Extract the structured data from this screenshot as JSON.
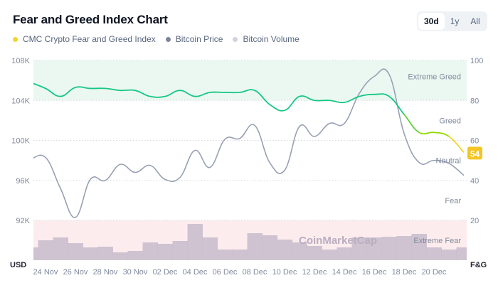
{
  "title": "Fear and Greed Index Chart",
  "range_tabs": [
    {
      "label": "30d",
      "active": true
    },
    {
      "label": "1y",
      "active": false
    },
    {
      "label": "All",
      "active": false
    }
  ],
  "legend": [
    {
      "label": "CMC Crypto Fear and Greed Index",
      "color": "#f3d42f"
    },
    {
      "label": "Bitcoin Price",
      "color": "#7d8599"
    },
    {
      "label": "Bitcoin Volume",
      "color": "#cfd3de"
    }
  ],
  "watermark": "CoinMarketCap",
  "chart_data": {
    "type": "line",
    "left_axis": {
      "unit_label": "USD",
      "ticks": [
        "108K",
        "104K",
        "100K",
        "96K",
        "92K"
      ],
      "range": [
        92,
        108
      ]
    },
    "right_axis": {
      "unit_label": "F&G",
      "ticks": [
        "100",
        "80",
        "60",
        "40",
        "20"
      ],
      "range": [
        0,
        100
      ]
    },
    "x_tick_labels": [
      "24 Nov",
      "26 Nov",
      "28 Nov",
      "30 Nov",
      "02 Dec",
      "04 Dec",
      "06 Dec",
      "08 Dec",
      "10 Dec",
      "12 Dec",
      "14 Dec",
      "16 Dec",
      "18 Dec",
      "20 Dec"
    ],
    "zones": [
      {
        "label": "Extreme Greed",
        "from": 80,
        "to": 100,
        "color": "#eaf8f1"
      },
      {
        "label": "Greed",
        "from": 60,
        "to": 80
      },
      {
        "label": "Neutral",
        "from": 40,
        "to": 60
      },
      {
        "label": "Fear",
        "from": 20,
        "to": 40
      },
      {
        "label": "Extreme Fear",
        "from": 0,
        "to": 20,
        "color": "#fdecee"
      }
    ],
    "x": [
      "23 Nov",
      "24 Nov",
      "25 Nov",
      "26 Nov",
      "27 Nov",
      "28 Nov",
      "29 Nov",
      "30 Nov",
      "01 Dec",
      "02 Dec",
      "03 Dec",
      "04 Dec",
      "05 Dec",
      "06 Dec",
      "07 Dec",
      "08 Dec",
      "09 Dec",
      "10 Dec",
      "11 Dec",
      "12 Dec",
      "13 Dec",
      "14 Dec",
      "15 Dec",
      "16 Dec",
      "17 Dec",
      "18 Dec",
      "19 Dec",
      "20 Dec",
      "21 Dec",
      "22 Dec"
    ],
    "series": [
      {
        "name": "CMC Crypto Fear and Greed Index",
        "axis": "right",
        "values": [
          89,
          86,
          82,
          86.5,
          86,
          86,
          85,
          85,
          82,
          82,
          85,
          82,
          84,
          84,
          84,
          85,
          78,
          75,
          82,
          80,
          80,
          79,
          82,
          83,
          82,
          73,
          64,
          64,
          62,
          54
        ]
      },
      {
        "name": "Bitcoin Price",
        "axis": "left",
        "unit": "K USD",
        "values": [
          98.1,
          98.3,
          95.2,
          92.3,
          96.1,
          96.0,
          97.6,
          96.8,
          97.5,
          96.1,
          96.3,
          99.0,
          97.3,
          100.1,
          100.2,
          101.5,
          97.8,
          97.0,
          101.4,
          100.4,
          101.7,
          101.7,
          104.7,
          106.4,
          106.6,
          100.7,
          97.8,
          98.0,
          97.7,
          96.5
        ]
      },
      {
        "name": "Bitcoin Volume",
        "axis": "none",
        "unit": "relative",
        "values": [
          18,
          28,
          32,
          24,
          18,
          19,
          11,
          13,
          25,
          23,
          27,
          51,
          32,
          15,
          15,
          38,
          35,
          29,
          25,
          20,
          15,
          18,
          32,
          32,
          33,
          34,
          37,
          18,
          15,
          18
        ]
      }
    ],
    "current_value": "54",
    "grid": true
  }
}
